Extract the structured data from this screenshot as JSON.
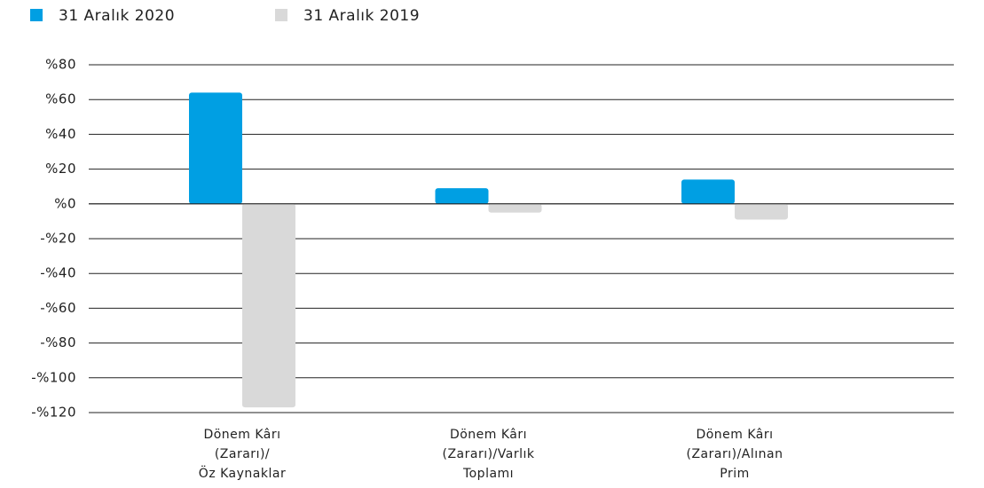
{
  "chart_data": {
    "type": "bar",
    "categories": [
      [
        "Dönem Kârı",
        "(Zararı)/",
        "Öz Kaynaklar"
      ],
      [
        "Dönem Kârı",
        "(Zararı)/Varlık",
        "Toplamı"
      ],
      [
        "Dönem Kârı",
        "(Zararı)/Alınan",
        "Prim"
      ]
    ],
    "series": [
      {
        "name": "31 Aralık 2020",
        "color": "#009fe3",
        "values": [
          64,
          9,
          14
        ]
      },
      {
        "name": "31 Aralık 2019",
        "color": "#d9d9d9",
        "values": [
          -117,
          -5,
          -9
        ]
      }
    ],
    "ylim": [
      -120,
      80
    ],
    "yticks": [
      {
        "value": 80,
        "label": "%80"
      },
      {
        "value": 60,
        "label": "%60"
      },
      {
        "value": 40,
        "label": "%40"
      },
      {
        "value": 20,
        "label": "%20"
      },
      {
        "value": 0,
        "label": "%0"
      },
      {
        "value": -20,
        "label": "-%20"
      },
      {
        "value": -40,
        "label": "-%40"
      },
      {
        "value": -60,
        "label": "-%60"
      },
      {
        "value": -80,
        "label": "-%80"
      },
      {
        "value": -100,
        "label": "-%100"
      },
      {
        "value": -120,
        "label": "-%120"
      }
    ],
    "grid": true,
    "legend": "top-left"
  }
}
